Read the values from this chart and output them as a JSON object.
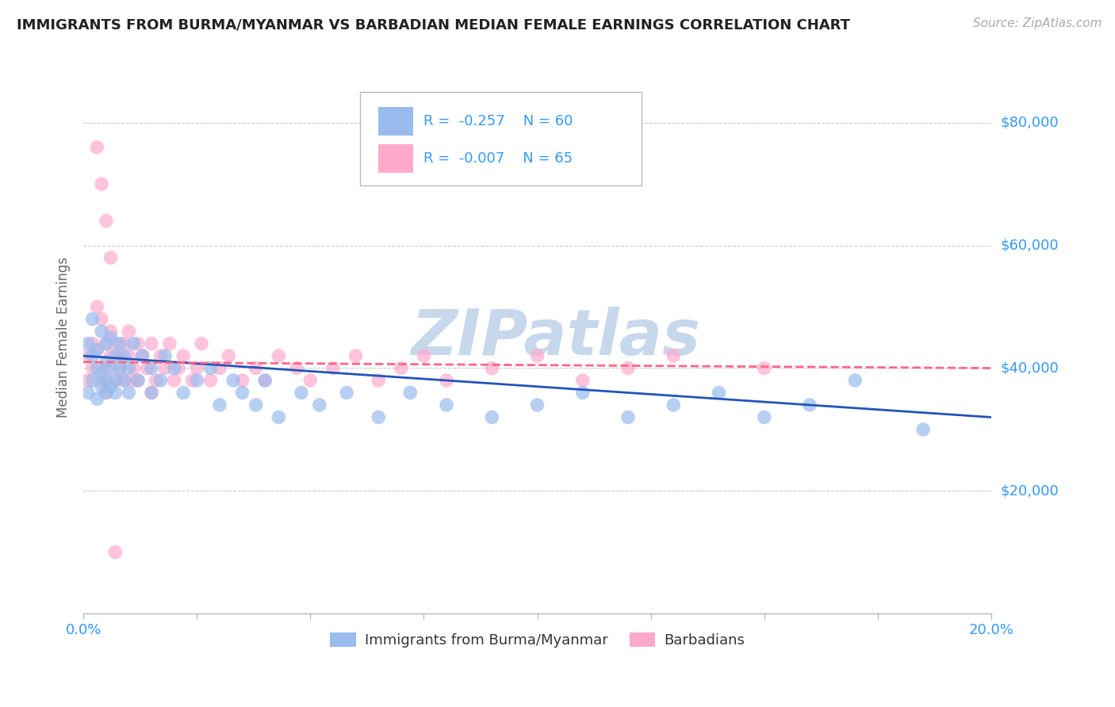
{
  "title": "IMMIGRANTS FROM BURMA/MYANMAR VS BARBADIAN MEDIAN FEMALE EARNINGS CORRELATION CHART",
  "source": "Source: ZipAtlas.com",
  "ylabel": "Median Female Earnings",
  "xlim": [
    0.0,
    0.2
  ],
  "ylim": [
    0,
    90000
  ],
  "yticks": [
    20000,
    40000,
    60000,
    80000
  ],
  "ytick_labels": [
    "$20,000",
    "$40,000",
    "$60,000",
    "$80,000"
  ],
  "xticks": [
    0.0,
    0.025,
    0.05,
    0.075,
    0.1,
    0.125,
    0.15,
    0.175,
    0.2
  ],
  "xtick_labels": [
    "0.0%",
    "",
    "",
    "",
    "",
    "",
    "",
    "",
    "20.0%"
  ],
  "watermark": "ZIPatlas",
  "legend_r1": "-0.257",
  "legend_n1": "60",
  "legend_r2": "-0.007",
  "legend_n2": "65",
  "legend_label1": "Immigrants from Burma/Myanmar",
  "legend_label2": "Barbadians",
  "blue_color": "#99BBEE",
  "pink_color": "#FFAACC",
  "blue_line_color": "#2255BB",
  "pink_line_color": "#FF6688",
  "title_color": "#222222",
  "axis_label_color": "#666666",
  "tick_color": "#3399FF",
  "grid_color": "#CCCCCC",
  "watermark_color": "#C8D8EC",
  "blue_scatter_x": [
    0.001,
    0.001,
    0.002,
    0.002,
    0.002,
    0.003,
    0.003,
    0.003,
    0.004,
    0.004,
    0.004,
    0.005,
    0.005,
    0.005,
    0.005,
    0.006,
    0.006,
    0.006,
    0.007,
    0.007,
    0.007,
    0.008,
    0.008,
    0.009,
    0.009,
    0.01,
    0.01,
    0.011,
    0.012,
    0.013,
    0.015,
    0.015,
    0.017,
    0.018,
    0.02,
    0.022,
    0.025,
    0.028,
    0.03,
    0.033,
    0.035,
    0.038,
    0.04,
    0.043,
    0.048,
    0.052,
    0.058,
    0.065,
    0.072,
    0.08,
    0.09,
    0.1,
    0.11,
    0.12,
    0.13,
    0.14,
    0.15,
    0.16,
    0.17,
    0.185
  ],
  "blue_scatter_y": [
    44000,
    36000,
    48000,
    38000,
    42000,
    40000,
    35000,
    43000,
    37000,
    46000,
    39000,
    41000,
    36000,
    44000,
    38000,
    40000,
    45000,
    37000,
    42000,
    38000,
    36000,
    44000,
    40000,
    38000,
    42000,
    36000,
    40000,
    44000,
    38000,
    42000,
    40000,
    36000,
    38000,
    42000,
    40000,
    36000,
    38000,
    40000,
    34000,
    38000,
    36000,
    34000,
    38000,
    32000,
    36000,
    34000,
    36000,
    32000,
    36000,
    34000,
    32000,
    34000,
    36000,
    32000,
    34000,
    36000,
    32000,
    34000,
    38000,
    30000
  ],
  "pink_scatter_x": [
    0.001,
    0.001,
    0.002,
    0.002,
    0.003,
    0.003,
    0.004,
    0.004,
    0.005,
    0.005,
    0.005,
    0.006,
    0.006,
    0.007,
    0.007,
    0.008,
    0.008,
    0.009,
    0.009,
    0.01,
    0.01,
    0.011,
    0.011,
    0.012,
    0.012,
    0.013,
    0.014,
    0.015,
    0.015,
    0.016,
    0.017,
    0.018,
    0.019,
    0.02,
    0.021,
    0.022,
    0.024,
    0.025,
    0.026,
    0.028,
    0.03,
    0.032,
    0.035,
    0.038,
    0.04,
    0.043,
    0.047,
    0.05,
    0.055,
    0.06,
    0.065,
    0.07,
    0.075,
    0.08,
    0.09,
    0.1,
    0.11,
    0.12,
    0.13,
    0.15,
    0.003,
    0.004,
    0.005,
    0.006,
    0.007
  ],
  "pink_scatter_y": [
    42000,
    38000,
    44000,
    40000,
    50000,
    43000,
    48000,
    38000,
    44000,
    40000,
    36000,
    46000,
    42000,
    44000,
    38000,
    42000,
    40000,
    44000,
    38000,
    42000,
    46000,
    38000,
    40000,
    44000,
    38000,
    42000,
    40000,
    44000,
    36000,
    38000,
    42000,
    40000,
    44000,
    38000,
    40000,
    42000,
    38000,
    40000,
    44000,
    38000,
    40000,
    42000,
    38000,
    40000,
    38000,
    42000,
    40000,
    38000,
    40000,
    42000,
    38000,
    40000,
    42000,
    38000,
    40000,
    42000,
    38000,
    40000,
    42000,
    40000,
    76000,
    70000,
    64000,
    58000,
    10000
  ],
  "blue_line_x0": 0.0,
  "blue_line_x1": 0.2,
  "blue_line_y0": 42000,
  "blue_line_y1": 32000,
  "pink_line_x0": 0.0,
  "pink_line_x1": 0.2,
  "pink_line_y0": 41000,
  "pink_line_y1": 40000
}
